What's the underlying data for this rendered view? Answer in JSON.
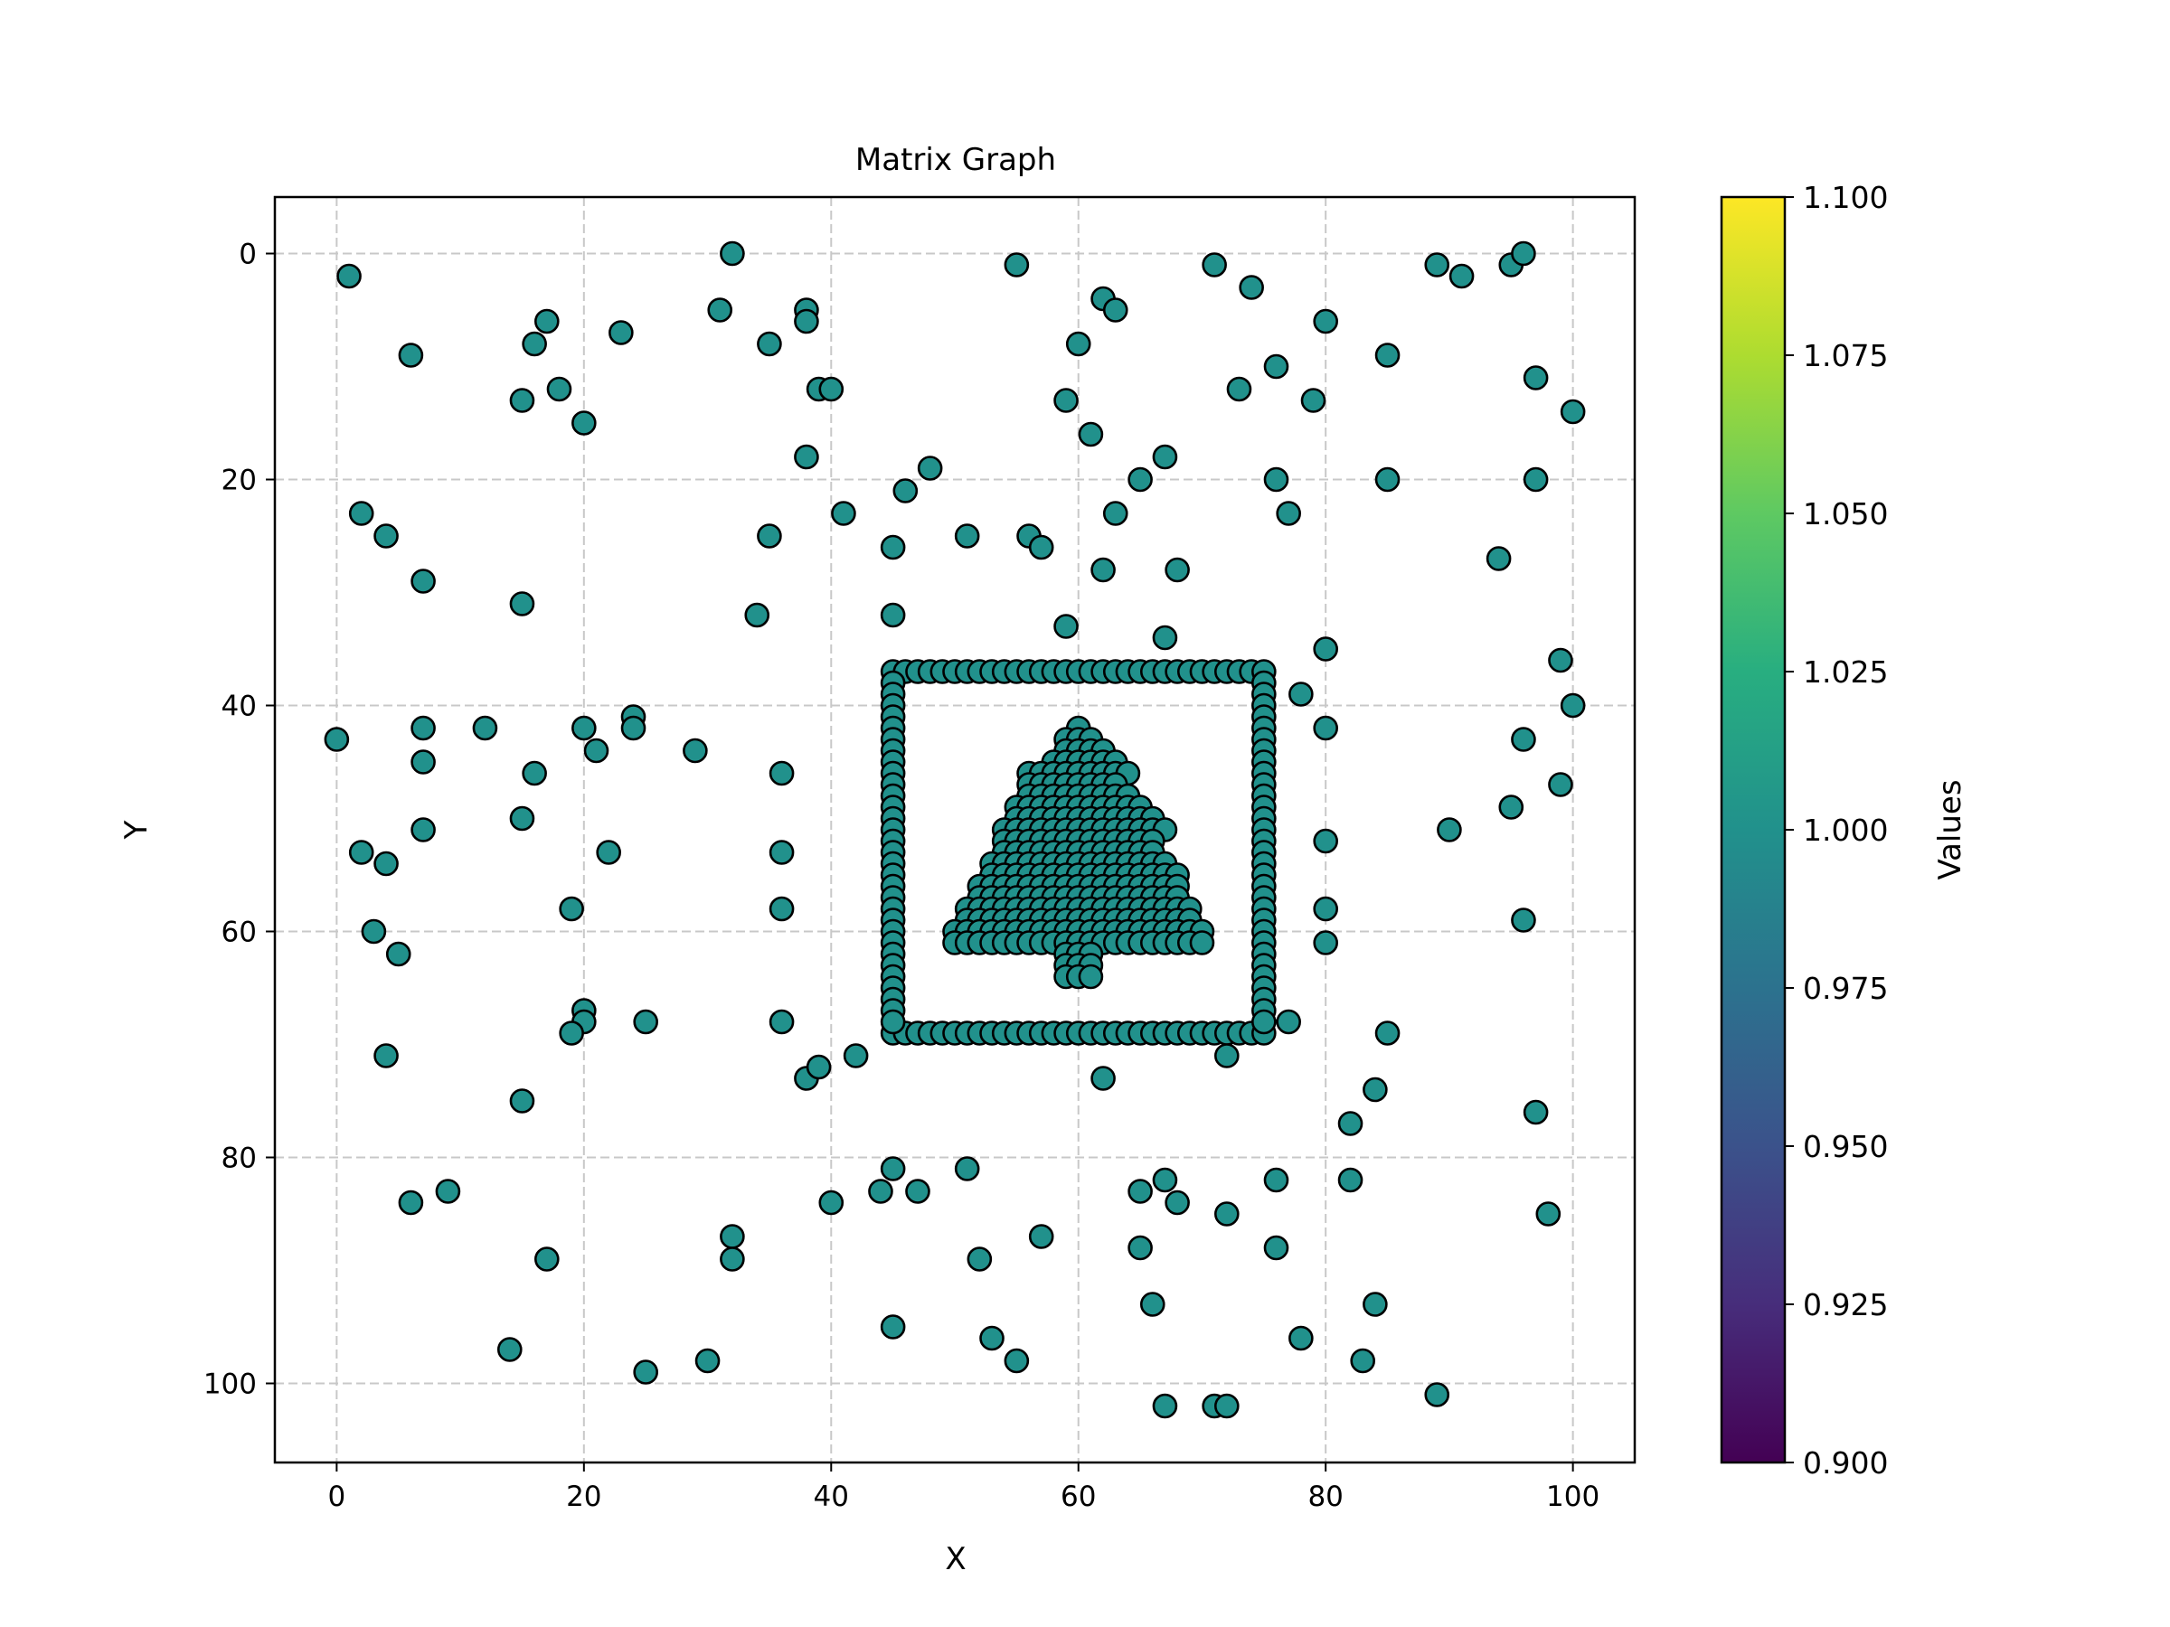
{
  "chart_data": {
    "type": "scatter",
    "title": "Matrix Graph",
    "xlabel": "X",
    "ylabel": "Y",
    "xlim": [
      -5,
      105
    ],
    "ylim": [
      107,
      -5
    ],
    "y_inverted": true,
    "xticks": [
      0,
      20,
      40,
      60,
      80,
      100
    ],
    "yticks": [
      0,
      20,
      40,
      60,
      80,
      100
    ],
    "grid": true,
    "marker_color": "#21918c",
    "marker_edge_color": "#000000",
    "colorbar": {
      "label": "Values",
      "colormap": "viridis",
      "range": [
        0.9,
        1.1
      ],
      "ticks": [
        "0.900",
        "0.925",
        "0.950",
        "0.975",
        "1.000",
        "1.025",
        "1.050",
        "1.075",
        "1.100"
      ]
    },
    "value_all_points": 1.0,
    "square_frame": {
      "x_min": 45,
      "x_max": 75,
      "y_min": 37,
      "y_max": 69
    },
    "tree_rows": [
      [
        42,
        60,
        60
      ],
      [
        43,
        59,
        61
      ],
      [
        44,
        59,
        62
      ],
      [
        45,
        58,
        63
      ],
      [
        46,
        56,
        64
      ],
      [
        47,
        56,
        63
      ],
      [
        48,
        56,
        64
      ],
      [
        49,
        55,
        65
      ],
      [
        50,
        55,
        66
      ],
      [
        51,
        54,
        67
      ],
      [
        52,
        54,
        66
      ],
      [
        53,
        54,
        66
      ],
      [
        54,
        53,
        67
      ],
      [
        55,
        53,
        68
      ],
      [
        56,
        52,
        68
      ],
      [
        57,
        52,
        68
      ],
      [
        58,
        51,
        69
      ],
      [
        59,
        51,
        69
      ],
      [
        60,
        50,
        70
      ],
      [
        61,
        50,
        70
      ],
      [
        62,
        59,
        61
      ],
      [
        63,
        59,
        61
      ],
      [
        64,
        59,
        61
      ]
    ],
    "scatter_points": [
      [
        1,
        2
      ],
      [
        32,
        0
      ],
      [
        55,
        1
      ],
      [
        71,
        1
      ],
      [
        74,
        3
      ],
      [
        89,
        1
      ],
      [
        91,
        2
      ],
      [
        95,
        1
      ],
      [
        96,
        0
      ],
      [
        6,
        9
      ],
      [
        17,
        6
      ],
      [
        16,
        8
      ],
      [
        23,
        7
      ],
      [
        31,
        5
      ],
      [
        35,
        8
      ],
      [
        38,
        5
      ],
      [
        38,
        6
      ],
      [
        62,
        4
      ],
      [
        63,
        5
      ],
      [
        60,
        8
      ],
      [
        80,
        6
      ],
      [
        76,
        10
      ],
      [
        85,
        9
      ],
      [
        97,
        11
      ],
      [
        15,
        13
      ],
      [
        18,
        12
      ],
      [
        20,
        15
      ],
      [
        39,
        12
      ],
      [
        40,
        12
      ],
      [
        59,
        13
      ],
      [
        61,
        16
      ],
      [
        73,
        12
      ],
      [
        79,
        13
      ],
      [
        100,
        14
      ],
      [
        38,
        18
      ],
      [
        48,
        19
      ],
      [
        67,
        18
      ],
      [
        2,
        23
      ],
      [
        4,
        25
      ],
      [
        41,
        23
      ],
      [
        46,
        21
      ],
      [
        65,
        20
      ],
      [
        63,
        23
      ],
      [
        76,
        20
      ],
      [
        77,
        23
      ],
      [
        85,
        20
      ],
      [
        97,
        20
      ],
      [
        35,
        25
      ],
      [
        45,
        26
      ],
      [
        51,
        25
      ],
      [
        56,
        25
      ],
      [
        57,
        26
      ],
      [
        7,
        29
      ],
      [
        62,
        28
      ],
      [
        68,
        28
      ],
      [
        94,
        27
      ],
      [
        15,
        31
      ],
      [
        34,
        32
      ],
      [
        45,
        32
      ],
      [
        59,
        33
      ],
      [
        67,
        34
      ],
      [
        80,
        35
      ],
      [
        99,
        36
      ],
      [
        78,
        39
      ],
      [
        0,
        43
      ],
      [
        7,
        42
      ],
      [
        12,
        42
      ],
      [
        20,
        42
      ],
      [
        24,
        41
      ],
      [
        24,
        42
      ],
      [
        21,
        44
      ],
      [
        29,
        44
      ],
      [
        80,
        42
      ],
      [
        100,
        40
      ],
      [
        96,
        43
      ],
      [
        7,
        45
      ],
      [
        16,
        46
      ],
      [
        36,
        46
      ],
      [
        15,
        50
      ],
      [
        7,
        51
      ],
      [
        2,
        53
      ],
      [
        4,
        54
      ],
      [
        22,
        53
      ],
      [
        36,
        53
      ],
      [
        80,
        52
      ],
      [
        90,
        51
      ],
      [
        95,
        49
      ],
      [
        99,
        47
      ],
      [
        19,
        58
      ],
      [
        36,
        58
      ],
      [
        80,
        58
      ],
      [
        3,
        60
      ],
      [
        5,
        62
      ],
      [
        80,
        61
      ],
      [
        96,
        59
      ],
      [
        20,
        67
      ],
      [
        20,
        68
      ],
      [
        19,
        69
      ],
      [
        25,
        68
      ],
      [
        36,
        68
      ],
      [
        77,
        68
      ],
      [
        85,
        69
      ],
      [
        4,
        71
      ],
      [
        38,
        73
      ],
      [
        39,
        72
      ],
      [
        42,
        71
      ],
      [
        62,
        73
      ],
      [
        72,
        71
      ],
      [
        84,
        74
      ],
      [
        15,
        75
      ],
      [
        82,
        77
      ],
      [
        97,
        76
      ],
      [
        45,
        81
      ],
      [
        51,
        81
      ],
      [
        6,
        84
      ],
      [
        9,
        83
      ],
      [
        40,
        84
      ],
      [
        44,
        83
      ],
      [
        47,
        83
      ],
      [
        65,
        83
      ],
      [
        67,
        82
      ],
      [
        68,
        84
      ],
      [
        72,
        85
      ],
      [
        76,
        82
      ],
      [
        82,
        82
      ],
      [
        98,
        85
      ],
      [
        17,
        89
      ],
      [
        32,
        87
      ],
      [
        32,
        89
      ],
      [
        52,
        89
      ],
      [
        57,
        87
      ],
      [
        65,
        88
      ],
      [
        76,
        88
      ],
      [
        66,
        93
      ],
      [
        84,
        93
      ],
      [
        45,
        95
      ],
      [
        53,
        96
      ],
      [
        78,
        96
      ],
      [
        14,
        97
      ],
      [
        30,
        98
      ],
      [
        55,
        98
      ],
      [
        83,
        98
      ],
      [
        25,
        99
      ],
      [
        67,
        102
      ],
      [
        71,
        102
      ],
      [
        72,
        102
      ],
      [
        89,
        101
      ]
    ]
  }
}
